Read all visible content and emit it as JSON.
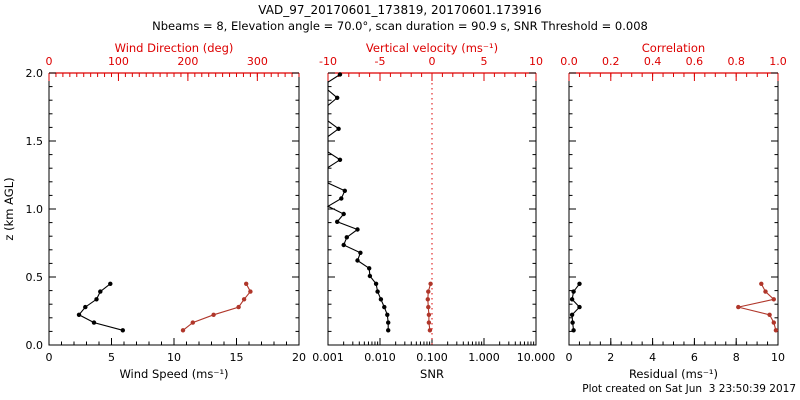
{
  "header": {
    "title": "VAD_97_20170601_173819, 20170601.173916",
    "subtitle": "Nbeams = 8, Elevation angle = 70.0°, scan duration = 90.9 s, SNR Threshold = 0.008"
  },
  "footer": {
    "created": "Plot created on Sat Jun  3 23:50:39 2017"
  },
  "colors": {
    "background": "#ffffff",
    "axis_black": "#000000",
    "axis_red": "#dd0000",
    "data_black": "#000000",
    "data_red": "#b0362a"
  },
  "chart_data": [
    {
      "type": "line",
      "id": "wind",
      "x_bottom": {
        "label": "Wind Speed (ms⁻¹)",
        "scale": "linear",
        "min": 0,
        "max": 20,
        "major": [
          {
            "v": 0,
            "t": "0"
          },
          {
            "v": 5,
            "t": "5"
          },
          {
            "v": 10,
            "t": "10"
          },
          {
            "v": 15,
            "t": "15"
          },
          {
            "v": 20,
            "t": "20"
          }
        ],
        "minor_step": 1,
        "color": "black"
      },
      "x_top": {
        "label": "Wind Direction (deg)",
        "scale": "linear",
        "min": 0,
        "max": 360,
        "major": [
          {
            "v": 0,
            "t": "0"
          },
          {
            "v": 100,
            "t": "100"
          },
          {
            "v": 200,
            "t": "200"
          },
          {
            "v": 300,
            "t": "300"
          }
        ],
        "minor_step": 10,
        "color": "red"
      },
      "y_left": {
        "label": "z (km AGL)",
        "min": 0,
        "max": 2,
        "major": [
          {
            "v": 0,
            "t": "0.0"
          },
          {
            "v": 0.5,
            "t": "0.5"
          },
          {
            "v": 1,
            "t": "1.0"
          },
          {
            "v": 1.5,
            "t": "1.5"
          },
          {
            "v": 2,
            "t": "2.0"
          }
        ],
        "minor_step": 0.1,
        "show_labels": true
      },
      "series": [
        {
          "id": "wind-speed",
          "axis": "bottom",
          "color": "black",
          "marker": true,
          "z": [
            0.108,
            0.165,
            0.222,
            0.279,
            0.336,
            0.393,
            0.45
          ],
          "v": [
            5.9,
            3.6,
            2.4,
            2.9,
            3.8,
            4.1,
            4.9
          ]
        },
        {
          "id": "wind-direction",
          "axis": "top",
          "color": "red",
          "marker": true,
          "z": [
            0.108,
            0.165,
            0.222,
            0.279,
            0.336,
            0.393,
            0.45
          ],
          "v": [
            193,
            207,
            237,
            273,
            281,
            290,
            284
          ]
        }
      ]
    },
    {
      "type": "line",
      "id": "snr",
      "x_bottom": {
        "label": "SNR",
        "scale": "log",
        "min": 0.001,
        "max": 10,
        "major": [
          {
            "v": 0.001,
            "t": "0.001"
          },
          {
            "v": 0.01,
            "t": "0.010"
          },
          {
            "v": 0.1,
            "t": "0.100"
          },
          {
            "v": 1,
            "t": "1.000"
          },
          {
            "v": 10,
            "t": "10.000"
          }
        ],
        "color": "black"
      },
      "x_top": {
        "label": "Vertical velocity (ms⁻¹)",
        "scale": "linear",
        "min": -10,
        "max": 10,
        "major": [
          {
            "v": -10,
            "t": "-10"
          },
          {
            "v": -5,
            "t": "-5"
          },
          {
            "v": 0,
            "t": "0"
          },
          {
            "v": 5,
            "t": "5"
          },
          {
            "v": 10,
            "t": "10"
          }
        ],
        "minor_step": 1,
        "color": "red"
      },
      "y_left": {
        "label": "",
        "min": 0,
        "max": 2,
        "major": [
          {
            "v": 0,
            "t": ""
          },
          {
            "v": 0.5,
            "t": ""
          },
          {
            "v": 1,
            "t": ""
          },
          {
            "v": 1.5,
            "t": ""
          },
          {
            "v": 2,
            "t": ""
          }
        ],
        "minor_step": 0.1,
        "show_labels": false
      },
      "refline": {
        "axis": "top",
        "value": 0,
        "style": "dotted",
        "color": "red"
      },
      "series": [
        {
          "id": "snr-profile",
          "axis": "bottom",
          "color": "black",
          "marker": true,
          "no_marker_below": 0.0011,
          "z": [
            0.108,
            0.165,
            0.222,
            0.279,
            0.336,
            0.393,
            0.45,
            0.507,
            0.564,
            0.621,
            0.678,
            0.735,
            0.792,
            0.849,
            0.906,
            0.963,
            1.02,
            1.077,
            1.134,
            1.191,
            1.248,
            1.305,
            1.362,
            1.419,
            1.476,
            1.533,
            1.59,
            1.647,
            1.704,
            1.761,
            1.818,
            1.875,
            1.932,
            1.989
          ],
          "v": [
            0.0144,
            0.0144,
            0.0138,
            0.0121,
            0.0104,
            0.009,
            0.0084,
            0.0064,
            0.0062,
            0.0037,
            0.0042,
            0.002,
            0.0023,
            0.0037,
            0.0015,
            0.002,
            0.001,
            0.0018,
            0.0021,
            0.001,
            0.001,
            0.001,
            0.0017,
            0.001,
            0.001,
            0.001,
            0.0016,
            0.001,
            0.001,
            0.001,
            0.0015,
            0.001,
            0.001,
            0.0017
          ]
        },
        {
          "id": "vertical-velocity",
          "axis": "top",
          "color": "red",
          "marker": true,
          "z": [
            0.108,
            0.165,
            0.222,
            0.279,
            0.336,
            0.393,
            0.45
          ],
          "v": [
            -0.2,
            -0.3,
            -0.3,
            -0.36,
            -0.4,
            -0.36,
            -0.13
          ]
        }
      ]
    },
    {
      "type": "line",
      "id": "residual",
      "x_bottom": {
        "label": "Residual (ms⁻¹)",
        "scale": "linear",
        "min": 0,
        "max": 10,
        "major": [
          {
            "v": 0,
            "t": "0"
          },
          {
            "v": 2,
            "t": "2"
          },
          {
            "v": 4,
            "t": "4"
          },
          {
            "v": 6,
            "t": "6"
          },
          {
            "v": 8,
            "t": "8"
          },
          {
            "v": 10,
            "t": "10"
          }
        ],
        "minor_step": 0.5,
        "color": "black"
      },
      "x_top": {
        "label": "Correlation",
        "scale": "linear",
        "min": 0,
        "max": 1,
        "major": [
          {
            "v": 0,
            "t": "0.0"
          },
          {
            "v": 0.2,
            "t": "0.2"
          },
          {
            "v": 0.4,
            "t": "0.4"
          },
          {
            "v": 0.6,
            "t": "0.6"
          },
          {
            "v": 0.8,
            "t": "0.8"
          },
          {
            "v": 1,
            "t": "1.0"
          }
        ],
        "minor_step": 0.05,
        "color": "red"
      },
      "y_left": {
        "label": "",
        "min": 0,
        "max": 2,
        "major": [
          {
            "v": 0,
            "t": ""
          },
          {
            "v": 0.5,
            "t": ""
          },
          {
            "v": 1,
            "t": ""
          },
          {
            "v": 1.5,
            "t": ""
          },
          {
            "v": 2,
            "t": ""
          }
        ],
        "minor_step": 0.1,
        "show_labels": false
      },
      "series": [
        {
          "id": "residual",
          "axis": "bottom",
          "color": "black",
          "marker": true,
          "z": [
            0.108,
            0.165,
            0.222,
            0.279,
            0.336,
            0.393,
            0.45
          ],
          "v": [
            0.22,
            0.17,
            0.15,
            0.5,
            0.15,
            0.22,
            0.5
          ]
        },
        {
          "id": "correlation",
          "axis": "top",
          "color": "red",
          "marker": true,
          "z": [
            0.108,
            0.165,
            0.222,
            0.279,
            0.336,
            0.393,
            0.45
          ],
          "v": [
            0.99,
            0.98,
            0.96,
            0.81,
            0.98,
            0.94,
            0.92
          ]
        }
      ]
    }
  ]
}
